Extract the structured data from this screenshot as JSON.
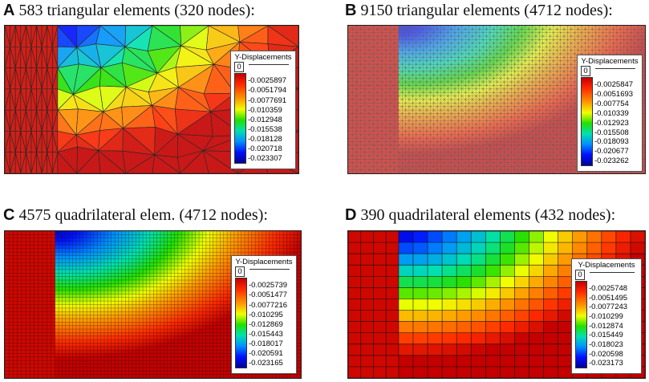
{
  "panels": [
    {
      "letter": "A",
      "title": "583 triangular elements (320 nodes):",
      "legend": {
        "title": "Y-Displacements",
        "zero": "0",
        "ticks": [
          "-0.0025897",
          "-0.0051794",
          "-0.0077691",
          "-0.010359",
          "-0.012948",
          "-0.015538",
          "-0.018128",
          "-0.020718",
          "-0.023307"
        ]
      }
    },
    {
      "letter": "B",
      "title": "9150 triangular elements (4712 nodes):",
      "legend": {
        "title": "Y-Displacements",
        "zero": "0",
        "ticks": [
          "-0.0025847",
          "-0.0051693",
          "-0.007754",
          "-0.010339",
          "-0.012923",
          "-0.015508",
          "-0.018093",
          "-0.020677",
          "-0.023262"
        ]
      }
    },
    {
      "letter": "C",
      "title": "4575 quadrilateral elem. (4712 nodes):",
      "legend": {
        "title": "Y-Displacements",
        "zero": "0",
        "ticks": [
          "-0.0025739",
          "-0.0051477",
          "-0.0077216",
          "-0.010295",
          "-0.012869",
          "-0.015443",
          "-0.018017",
          "-0.020591",
          "-0.023165"
        ]
      }
    },
    {
      "letter": "D",
      "title": "390 quadrilateral elements (432 nodes):",
      "legend": {
        "title": "Y-Displacements",
        "zero": "0",
        "ticks": [
          "-0.0025748",
          "-0.0051495",
          "-0.0077243",
          "-0.010299",
          "-0.012874",
          "-0.015449",
          "-0.018023",
          "-0.020598",
          "-0.023173"
        ]
      }
    }
  ],
  "colors": {
    "max": "#c40000",
    "min": "#000099"
  }
}
